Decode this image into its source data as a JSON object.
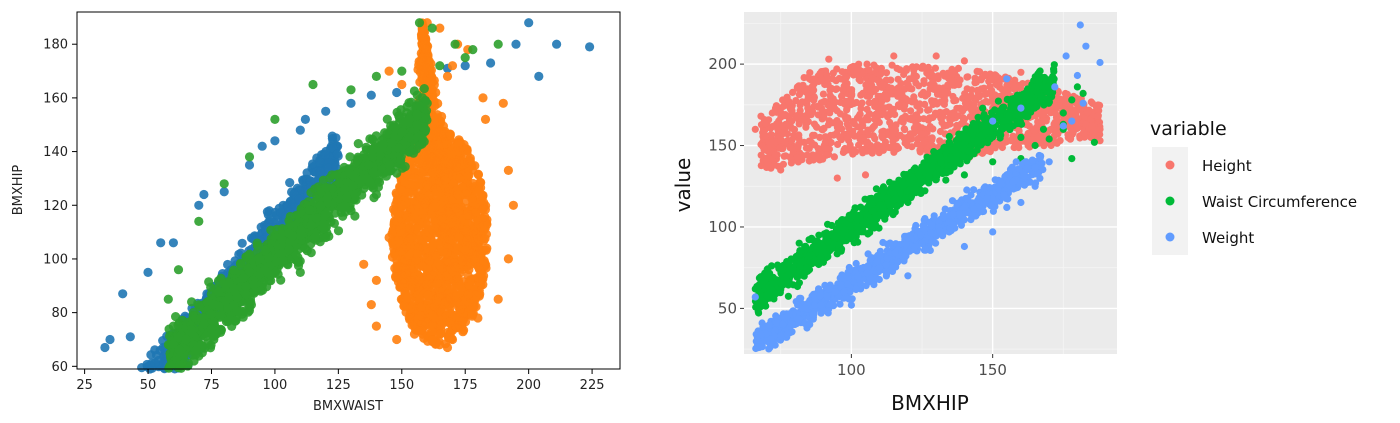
{
  "chart_data": [
    {
      "type": "scatter",
      "style": "matplotlib-seaborn",
      "title": "",
      "xlabel": "BMXWAIST",
      "ylabel": "BMXHIP",
      "xlim": [
        22,
        236
      ],
      "ylim": [
        59,
        192
      ],
      "xticks": [
        25,
        50,
        75,
        100,
        125,
        150,
        175,
        200,
        225
      ],
      "yticks": [
        60,
        80,
        100,
        120,
        140,
        160,
        180
      ],
      "grid": false,
      "legend": "none",
      "series": [
        {
          "color": "#1f77b4",
          "band": {
            "x_range": [
              30,
              125
            ],
            "center": [
              -5,
              1.15
            ],
            "spread": 6
          },
          "points": [
            [
              224,
              179
            ],
            [
              211,
              180
            ],
            [
              204,
              168
            ],
            [
              200,
              188
            ],
            [
              195,
              180
            ],
            [
              185,
              173
            ],
            [
              175,
              172
            ],
            [
              168,
              171
            ],
            [
              160,
              168
            ],
            [
              148,
              162
            ],
            [
              138,
              161
            ],
            [
              130,
              158
            ],
            [
              120,
              155
            ],
            [
              110,
              148
            ],
            [
              100,
              144
            ],
            [
              90,
              135
            ],
            [
              80,
              125
            ],
            [
              70,
              120
            ],
            [
              60,
              106
            ],
            [
              50,
              95
            ],
            [
              40,
              87
            ],
            [
              35,
              70
            ],
            [
              33,
              67
            ],
            [
              43,
              71
            ],
            [
              56,
              67
            ],
            [
              55,
              106
            ],
            [
              72,
              124
            ],
            [
              95,
              142
            ],
            [
              112,
              152
            ]
          ]
        },
        {
          "color": "#ff7f0e",
          "blob": {
            "center": [
              165,
              108
            ],
            "rx": 19,
            "ry": 40,
            "top": [
              160,
              188
            ]
          },
          "points": [
            [
              160,
              188
            ],
            [
              165,
              186
            ],
            [
              172,
              180
            ],
            [
              176,
              178
            ],
            [
              170,
              172
            ],
            [
              158,
              175
            ],
            [
              168,
              168
            ],
            [
              182,
              160
            ],
            [
              183,
              152
            ],
            [
              190,
              158
            ],
            [
              192,
              133
            ],
            [
              194,
              120
            ],
            [
              192,
              100
            ],
            [
              188,
              85
            ],
            [
              180,
              78
            ],
            [
              170,
              70
            ],
            [
              168,
              67
            ],
            [
              155,
              72
            ],
            [
              148,
              70
            ],
            [
              140,
              75
            ],
            [
              138,
              83
            ],
            [
              140,
              92
            ],
            [
              135,
              98
            ],
            [
              145,
              108
            ],
            [
              150,
              120
            ],
            [
              155,
              130
            ],
            [
              158,
              145
            ],
            [
              162,
              160
            ],
            [
              150,
              165
            ],
            [
              145,
              170
            ]
          ]
        },
        {
          "color": "#2ca02c",
          "band": {
            "x_range": [
              58,
              160
            ],
            "center": [
              13,
              0.88
            ],
            "spread": 7
          },
          "points": [
            [
              157,
              188
            ],
            [
              162,
              186
            ],
            [
              171,
              180
            ],
            [
              178,
              178
            ],
            [
              188,
              180
            ],
            [
              175,
              175
            ],
            [
              165,
              172
            ],
            [
              150,
              170
            ],
            [
              140,
              168
            ],
            [
              130,
              163
            ],
            [
              115,
              165
            ],
            [
              100,
              152
            ],
            [
              90,
              138
            ],
            [
              80,
              128
            ],
            [
              70,
              114
            ],
            [
              62,
              96
            ],
            [
              58,
              85
            ],
            [
              60,
              75
            ],
            [
              65,
              70
            ],
            [
              68,
              68
            ],
            [
              69,
              66
            ],
            [
              75,
              74
            ],
            [
              90,
              82
            ],
            [
              110,
              95
            ],
            [
              120,
              108
            ],
            [
              130,
              118
            ],
            [
              140,
              124
            ],
            [
              148,
              132
            ],
            [
              153,
              140
            ],
            [
              156,
              150
            ],
            [
              160,
              158
            ]
          ]
        }
      ]
    },
    {
      "type": "scatter",
      "style": "ggplot2",
      "title": "",
      "xlabel": "BMXHIP",
      "ylabel": "value",
      "xlim": [
        62,
        194
      ],
      "ylim": [
        22,
        232
      ],
      "xticks": [
        100,
        150
      ],
      "yticks": [
        50,
        100,
        150,
        200
      ],
      "grid": true,
      "legend": "right",
      "legend_title": "variable",
      "series": [
        {
          "name": "Height",
          "color": "#f8766d",
          "shape": {
            "x_range": [
              68,
              188
            ],
            "upper": [
              165,
              195,
              200,
              200,
              198,
              193,
              185,
              175
            ],
            "lower": [
              135,
              140,
              145,
              145,
              140,
              148,
              150,
              155
            ]
          },
          "points": [
            [
              68,
              168
            ],
            [
              72,
              170
            ],
            [
              66,
              160
            ],
            [
              70,
              140
            ],
            [
              75,
              135
            ],
            [
              92,
              203
            ],
            [
              115,
              205
            ],
            [
              140,
              202
            ],
            [
              160,
              195
            ],
            [
              175,
              178
            ],
            [
              180,
              175
            ],
            [
              188,
              160
            ],
            [
              188,
              153
            ],
            [
              185,
              162
            ],
            [
              178,
              168
            ],
            [
              172,
              170
            ],
            [
              165,
              185
            ],
            [
              158,
              186
            ],
            [
              130,
              205
            ],
            [
              100,
              198
            ],
            [
              95,
              130
            ],
            [
              105,
              132
            ],
            [
              120,
              155
            ]
          ]
        },
        {
          "name": "Waist Circumference",
          "color": "#00ba38",
          "band": {
            "x_range": [
              66,
              172
            ],
            "center": [
              -25,
              1.25
            ],
            "spread": 7
          },
          "points": [
            [
              68,
              67
            ],
            [
              66,
              62
            ],
            [
              70,
              58
            ],
            [
              75,
              66
            ],
            [
              85,
              82
            ],
            [
              100,
              95
            ],
            [
              120,
              115
            ],
            [
              140,
              132
            ],
            [
              150,
              140
            ],
            [
              160,
              155
            ],
            [
              168,
              160
            ],
            [
              175,
              170
            ],
            [
              178,
              178
            ],
            [
              180,
              186
            ],
            [
              182,
              182
            ],
            [
              175,
              163
            ],
            [
              170,
              154
            ],
            [
              165,
              150
            ],
            [
              178,
              142
            ],
            [
              186,
              152
            ],
            [
              175,
              160
            ],
            [
              160,
              142
            ]
          ]
        },
        {
          "name": "Weight",
          "color": "#619cff",
          "band": {
            "x_range": [
              66,
              168
            ],
            "center": [
              -44,
              1.1
            ],
            "spread": 6
          },
          "points": [
            [
              66,
              57
            ],
            [
              68,
              34
            ],
            [
              70,
              30
            ],
            [
              75,
              33
            ],
            [
              85,
              40
            ],
            [
              100,
              52
            ],
            [
              120,
              70
            ],
            [
              140,
              88
            ],
            [
              150,
              97
            ],
            [
              155,
              112
            ],
            [
              160,
              115
            ],
            [
              165,
              125
            ],
            [
              170,
              140
            ],
            [
              175,
              162
            ],
            [
              178,
              165
            ],
            [
              182,
              176
            ],
            [
              180,
              193
            ],
            [
              176,
              205
            ],
            [
              183,
              211
            ],
            [
              181,
              224
            ],
            [
              188,
              201
            ],
            [
              172,
              186
            ],
            [
              160,
              173
            ],
            [
              155,
              191
            ],
            [
              150,
              165
            ],
            [
              140,
              112
            ],
            [
              125,
              90
            ],
            [
              110,
              75
            ]
          ]
        }
      ]
    }
  ]
}
